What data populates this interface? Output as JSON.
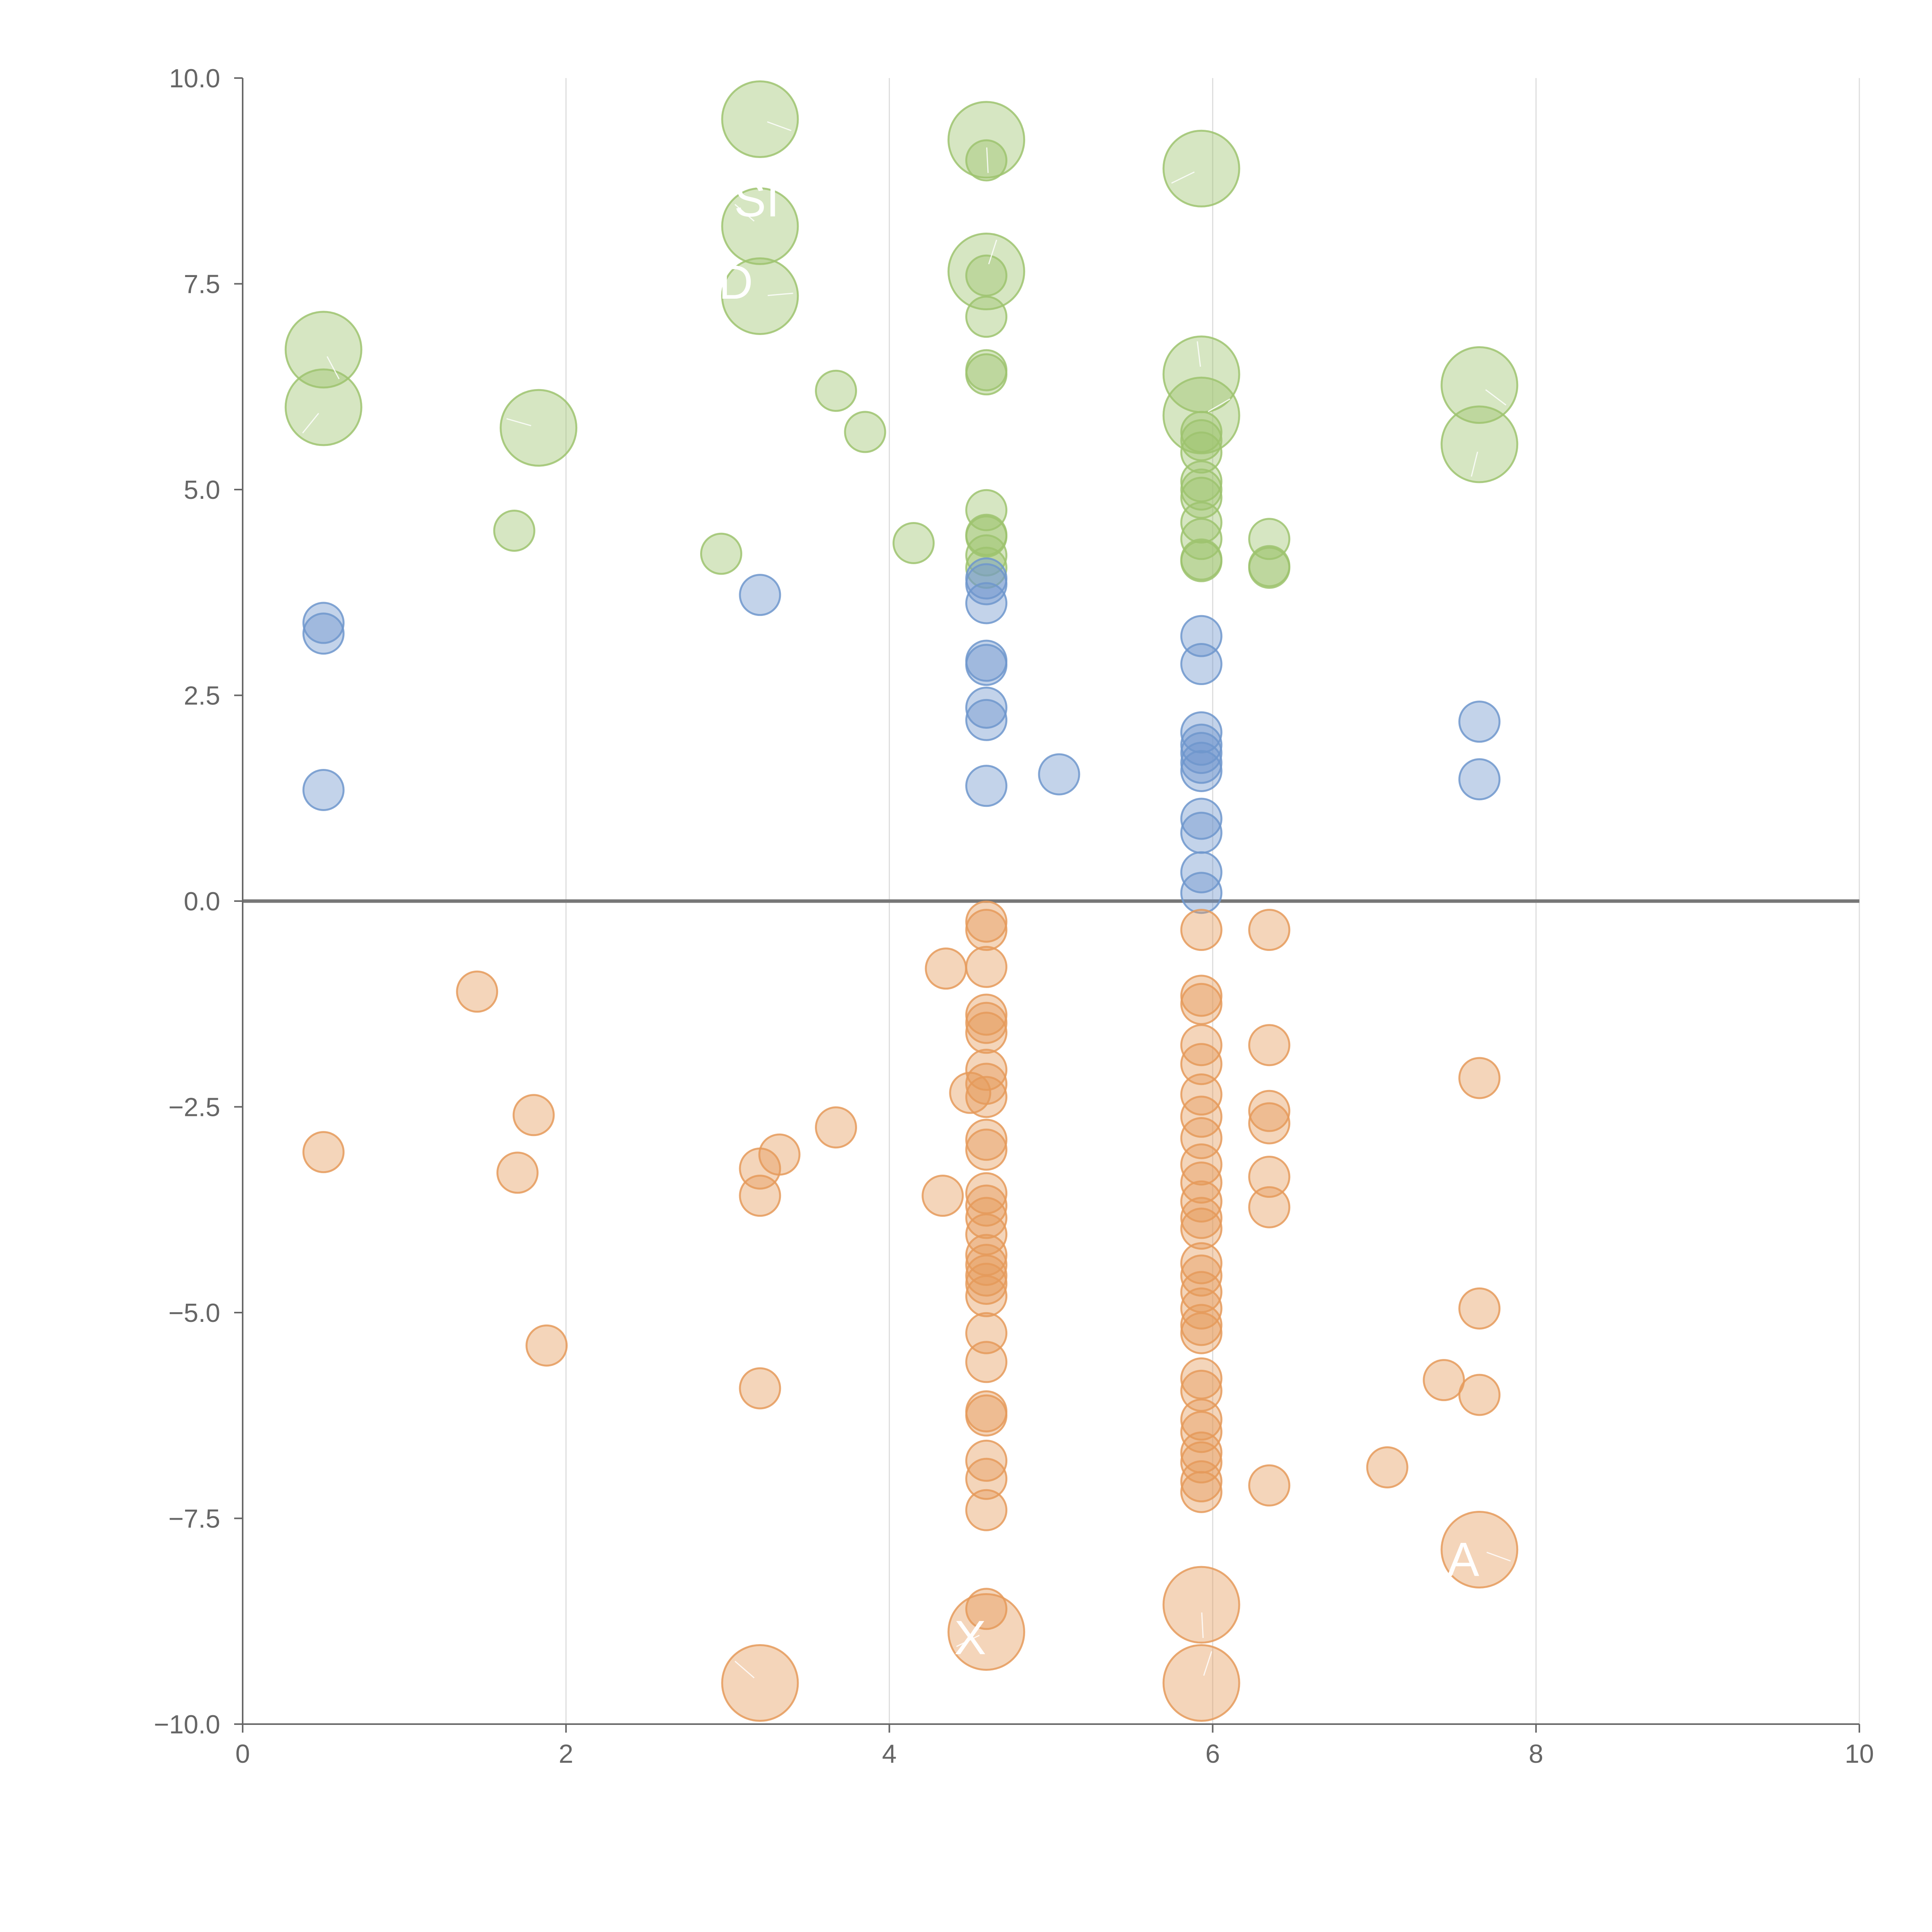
{
  "chart_data": {
    "type": "scatter",
    "title": "",
    "xlabel": "",
    "ylabel": "",
    "xlim": [
      0,
      10
    ],
    "ylim": [
      -10,
      10
    ],
    "grid": "vertical",
    "legend": "none",
    "x_ticks": [
      "0",
      "2",
      "4",
      "6",
      "8",
      "10"
    ],
    "y_ticks": [
      "10.0",
      "7.5",
      "5.0",
      "2.5",
      "0.0",
      "−2.5",
      "−5.0",
      "−7.5",
      "−10.0"
    ],
    "colors": {
      "green": "#9dc36e",
      "blue": "#6f97cc",
      "orange": "#e59a5b"
    },
    "series": [
      {
        "name": "green",
        "points": [
          [
            3.2,
            9.5,
            1.0
          ],
          [
            4.6,
            9.25,
            1.0
          ],
          [
            5.93,
            8.9,
            1.0
          ],
          [
            3.2,
            8.2,
            1.0
          ],
          [
            4.6,
            7.65,
            1.0
          ],
          [
            3.2,
            7.35,
            1.0
          ],
          [
            0.5,
            6.7,
            1.0
          ],
          [
            0.5,
            6.0,
            1.0
          ],
          [
            1.83,
            5.75,
            1.0
          ],
          [
            5.93,
            6.4,
            1.0
          ],
          [
            5.93,
            5.9,
            1.0
          ],
          [
            7.65,
            6.27,
            1.0
          ],
          [
            7.65,
            5.55,
            1.0
          ],
          [
            4.6,
            9.0,
            0.3
          ],
          [
            4.6,
            7.6,
            0.3
          ],
          [
            4.6,
            7.1,
            0.3
          ],
          [
            4.6,
            6.4,
            0.3
          ],
          [
            4.6,
            6.45,
            0.3
          ],
          [
            4.6,
            4.75,
            0.3
          ],
          [
            4.6,
            4.45,
            0.3
          ],
          [
            4.6,
            4.43,
            0.3
          ],
          [
            4.6,
            4.2,
            0.3
          ],
          [
            4.6,
            4.05,
            0.3
          ],
          [
            3.67,
            6.2,
            0.3
          ],
          [
            3.85,
            5.7,
            0.3
          ],
          [
            1.68,
            4.5,
            0.3
          ],
          [
            2.96,
            4.22,
            0.3
          ],
          [
            4.15,
            4.35,
            0.3
          ],
          [
            5.93,
            5.7,
            0.3
          ],
          [
            5.93,
            5.6,
            0.3
          ],
          [
            5.93,
            5.45,
            0.3
          ],
          [
            5.93,
            5.1,
            0.3
          ],
          [
            5.93,
            5.0,
            0.3
          ],
          [
            5.93,
            4.9,
            0.3
          ],
          [
            5.93,
            4.6,
            0.3
          ],
          [
            5.93,
            4.4,
            0.3
          ],
          [
            5.93,
            4.15,
            0.3
          ],
          [
            5.93,
            4.13,
            0.3
          ],
          [
            6.35,
            4.4,
            0.3
          ],
          [
            6.35,
            4.07,
            0.3
          ],
          [
            6.35,
            4.05,
            0.3
          ]
        ]
      },
      {
        "name": "blue",
        "points": [
          [
            0.5,
            3.38,
            0.3
          ],
          [
            0.5,
            3.25,
            0.3
          ],
          [
            0.5,
            1.35,
            0.3
          ],
          [
            3.2,
            3.72,
            0.3
          ],
          [
            4.6,
            3.92,
            0.3
          ],
          [
            4.6,
            3.85,
            0.3
          ],
          [
            4.6,
            3.62,
            0.3
          ],
          [
            4.6,
            2.92,
            0.3
          ],
          [
            4.6,
            2.87,
            0.3
          ],
          [
            4.6,
            2.35,
            0.3
          ],
          [
            4.6,
            2.2,
            0.3
          ],
          [
            4.6,
            1.4,
            0.3
          ],
          [
            5.05,
            1.54,
            0.3
          ],
          [
            5.93,
            3.22,
            0.3
          ],
          [
            5.93,
            2.88,
            0.3
          ],
          [
            5.93,
            2.05,
            0.3
          ],
          [
            5.93,
            1.9,
            0.3
          ],
          [
            5.93,
            1.8,
            0.3
          ],
          [
            5.93,
            1.68,
            0.3
          ],
          [
            5.93,
            1.58,
            0.3
          ],
          [
            5.93,
            1.0,
            0.3
          ],
          [
            5.93,
            0.83,
            0.3
          ],
          [
            5.93,
            0.35,
            0.3
          ],
          [
            5.93,
            0.1,
            0.3
          ],
          [
            7.65,
            2.18,
            0.3
          ],
          [
            7.65,
            1.48,
            0.3
          ]
        ]
      },
      {
        "name": "orange",
        "points": [
          [
            1.45,
            -1.1,
            0.3
          ],
          [
            0.5,
            -3.05,
            0.3
          ],
          [
            1.8,
            -2.6,
            0.3
          ],
          [
            1.7,
            -3.3,
            0.3
          ],
          [
            1.88,
            -5.4,
            0.3
          ],
          [
            3.2,
            -3.25,
            0.3
          ],
          [
            3.32,
            -3.08,
            0.3
          ],
          [
            3.2,
            -3.58,
            0.3
          ],
          [
            3.67,
            -2.75,
            0.3
          ],
          [
            3.2,
            -5.92,
            0.3
          ],
          [
            4.35,
            -0.82,
            0.3
          ],
          [
            4.5,
            -2.33,
            0.3
          ],
          [
            4.33,
            -3.58,
            0.3
          ],
          [
            4.6,
            -0.25,
            0.3
          ],
          [
            4.6,
            -0.35,
            0.3
          ],
          [
            4.6,
            -0.8,
            0.3
          ],
          [
            4.6,
            -1.38,
            0.3
          ],
          [
            4.6,
            -1.48,
            0.3
          ],
          [
            4.6,
            -1.6,
            0.3
          ],
          [
            4.6,
            -2.05,
            0.3
          ],
          [
            4.6,
            -2.22,
            0.3
          ],
          [
            4.6,
            -2.38,
            0.3
          ],
          [
            4.6,
            -2.9,
            0.3
          ],
          [
            4.6,
            -3.02,
            0.3
          ],
          [
            4.6,
            -3.55,
            0.3
          ],
          [
            4.6,
            -3.7,
            0.3
          ],
          [
            4.6,
            -3.85,
            0.3
          ],
          [
            4.6,
            -4.05,
            0.3
          ],
          [
            4.6,
            -4.3,
            0.3
          ],
          [
            4.6,
            -4.42,
            0.3
          ],
          [
            4.6,
            -4.55,
            0.3
          ],
          [
            4.6,
            -4.65,
            0.3
          ],
          [
            4.6,
            -4.8,
            0.3
          ],
          [
            4.6,
            -5.25,
            0.3
          ],
          [
            4.6,
            -5.6,
            0.3
          ],
          [
            4.6,
            -6.2,
            0.3
          ],
          [
            4.6,
            -6.25,
            0.3
          ],
          [
            4.6,
            -6.8,
            0.3
          ],
          [
            4.6,
            -7.02,
            0.3
          ],
          [
            4.6,
            -7.4,
            0.3
          ],
          [
            4.6,
            -8.6,
            0.3
          ],
          [
            5.93,
            -0.35,
            0.3
          ],
          [
            5.93,
            -1.15,
            0.3
          ],
          [
            5.93,
            -1.25,
            0.3
          ],
          [
            5.93,
            -1.75,
            0.3
          ],
          [
            5.93,
            -1.98,
            0.3
          ],
          [
            5.93,
            -2.35,
            0.3
          ],
          [
            5.93,
            -2.62,
            0.3
          ],
          [
            5.93,
            -2.88,
            0.3
          ],
          [
            5.93,
            -3.2,
            0.3
          ],
          [
            5.93,
            -3.42,
            0.3
          ],
          [
            5.93,
            -3.65,
            0.3
          ],
          [
            5.93,
            -3.85,
            0.3
          ],
          [
            5.93,
            -3.98,
            0.3
          ],
          [
            5.93,
            -4.4,
            0.3
          ],
          [
            5.93,
            -4.55,
            0.3
          ],
          [
            5.93,
            -4.75,
            0.3
          ],
          [
            5.93,
            -4.95,
            0.3
          ],
          [
            5.93,
            -5.15,
            0.3
          ],
          [
            5.93,
            -5.25,
            0.3
          ],
          [
            5.93,
            -5.8,
            0.3
          ],
          [
            5.93,
            -5.95,
            0.3
          ],
          [
            5.93,
            -6.3,
            0.3
          ],
          [
            5.93,
            -6.45,
            0.3
          ],
          [
            5.93,
            -6.7,
            0.3
          ],
          [
            5.93,
            -6.82,
            0.3
          ],
          [
            5.93,
            -7.05,
            0.3
          ],
          [
            5.93,
            -7.18,
            0.3
          ],
          [
            6.35,
            -0.35,
            0.3
          ],
          [
            6.35,
            -1.75,
            0.3
          ],
          [
            6.35,
            -2.55,
            0.3
          ],
          [
            6.35,
            -2.7,
            0.3
          ],
          [
            6.35,
            -3.35,
            0.3
          ],
          [
            6.35,
            -3.72,
            0.3
          ],
          [
            6.35,
            -7.1,
            0.3
          ],
          [
            7.08,
            -6.88,
            0.3
          ],
          [
            7.43,
            -5.82,
            0.3
          ],
          [
            7.65,
            -2.15,
            0.3
          ],
          [
            7.65,
            -4.95,
            0.3
          ],
          [
            7.65,
            -6.0,
            0.3
          ],
          [
            7.65,
            -7.88,
            1.0
          ],
          [
            5.93,
            -8.55,
            1.0
          ],
          [
            4.6,
            -8.88,
            1.0
          ],
          [
            3.2,
            -9.5,
            1.0
          ],
          [
            5.93,
            -9.5,
            1.0
          ]
        ]
      }
    ],
    "annotations": [
      {
        "text": "SI",
        "x": 3.18,
        "y": 8.32
      },
      {
        "text": "D",
        "x": 3.05,
        "y": 7.32
      },
      {
        "text": "X",
        "x": 4.5,
        "y": -9.15
      },
      {
        "text": "A",
        "x": 7.55,
        "y": -8.2
      }
    ]
  }
}
